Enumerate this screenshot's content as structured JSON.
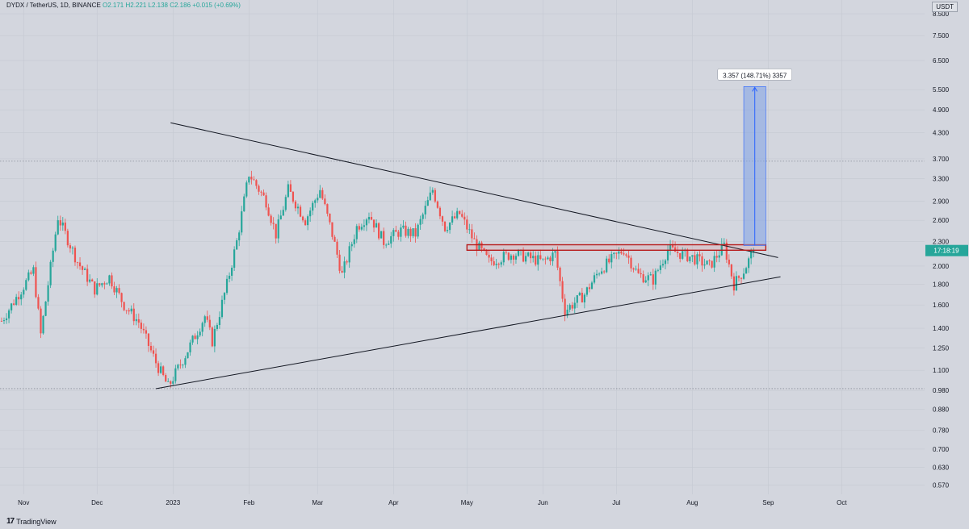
{
  "header": {
    "symbol": "DYDX / TetherUS, 1D, BINANCE",
    "open": "O2.171",
    "high": "H2.221",
    "low": "L2.138",
    "close": "C2.186",
    "change": "+0.015 (+0.69%)"
  },
  "unit_label": "USDT",
  "price_tag": "17:18:19",
  "measure_label": "3.357 (148.71%) 3357",
  "brand": {
    "logo": "17",
    "name": "TradingView"
  },
  "colors": {
    "background": "#d3d6de",
    "up": "#26a69a",
    "down": "#ef5350",
    "price_tag": "#26a69a",
    "resistance": "#b71c1c",
    "measure_fill": "#7fa3e6",
    "measure_line": "#2962ff",
    "trendline": "#131722"
  },
  "chart_data": {
    "type": "candlestick",
    "log_scale": true,
    "y_ticks": [
      "8.500",
      "7.500",
      "6.500",
      "5.500",
      "4.900",
      "4.300",
      "3.700",
      "3.300",
      "2.900",
      "2.600",
      "2.300",
      "2.000",
      "1.800",
      "1.600",
      "1.400",
      "1.250",
      "1.100",
      "0.980",
      "0.880",
      "0.780",
      "0.700",
      "0.630",
      "0.570"
    ],
    "x_ticks": [
      "Nov",
      "Dec",
      "2023",
      "Feb",
      "Mar",
      "Apr",
      "May",
      "Jun",
      "Jul",
      "Aug",
      "Sep",
      "Oct"
    ],
    "ylim": [
      0.54,
      9.2
    ],
    "series_description": "DYDX/USDT daily candles, late Oct 2022 to Aug 2023",
    "anchors": [
      {
        "date": "2022-10-23",
        "close": 1.46
      },
      {
        "date": "2022-11-05",
        "close": 1.95
      },
      {
        "date": "2022-11-08",
        "close": 1.35
      },
      {
        "date": "2022-11-15",
        "close": 2.65
      },
      {
        "date": "2022-11-23",
        "close": 2.05
      },
      {
        "date": "2022-11-30",
        "close": 1.75
      },
      {
        "date": "2022-12-06",
        "close": 1.88
      },
      {
        "date": "2022-12-12",
        "close": 1.6
      },
      {
        "date": "2022-12-18",
        "close": 1.45
      },
      {
        "date": "2022-12-25",
        "close": 1.15
      },
      {
        "date": "2022-12-30",
        "close": 1.0
      },
      {
        "date": "2023-01-06",
        "close": 1.2
      },
      {
        "date": "2023-01-14",
        "close": 1.5
      },
      {
        "date": "2023-01-17",
        "close": 1.3
      },
      {
        "date": "2023-01-23",
        "close": 1.8
      },
      {
        "date": "2023-01-27",
        "close": 2.3
      },
      {
        "date": "2023-02-01",
        "close": 3.4
      },
      {
        "date": "2023-02-08",
        "close": 2.9
      },
      {
        "date": "2023-02-12",
        "close": 2.4
      },
      {
        "date": "2023-02-17",
        "close": 3.1
      },
      {
        "date": "2023-02-24",
        "close": 2.6
      },
      {
        "date": "2023-03-02",
        "close": 3.1
      },
      {
        "date": "2023-03-07",
        "close": 2.4
      },
      {
        "date": "2023-03-11",
        "close": 1.9
      },
      {
        "date": "2023-03-17",
        "close": 2.5
      },
      {
        "date": "2023-03-22",
        "close": 2.7
      },
      {
        "date": "2023-03-28",
        "close": 2.3
      },
      {
        "date": "2023-04-04",
        "close": 2.45
      },
      {
        "date": "2023-04-10",
        "close": 2.4
      },
      {
        "date": "2023-04-17",
        "close": 3.1
      },
      {
        "date": "2023-04-22",
        "close": 2.5
      },
      {
        "date": "2023-04-28",
        "close": 2.7
      },
      {
        "date": "2023-05-04",
        "close": 2.3
      },
      {
        "date": "2023-05-10",
        "close": 2.05
      },
      {
        "date": "2023-05-20",
        "close": 2.15
      },
      {
        "date": "2023-06-01",
        "close": 2.05
      },
      {
        "date": "2023-06-06",
        "close": 2.15
      },
      {
        "date": "2023-06-10",
        "close": 1.55
      },
      {
        "date": "2023-06-18",
        "close": 1.7
      },
      {
        "date": "2023-06-24",
        "close": 1.95
      },
      {
        "date": "2023-07-04",
        "close": 2.2
      },
      {
        "date": "2023-07-10",
        "close": 1.9
      },
      {
        "date": "2023-07-16",
        "close": 1.85
      },
      {
        "date": "2023-07-22",
        "close": 2.2
      },
      {
        "date": "2023-08-01",
        "close": 2.1
      },
      {
        "date": "2023-08-08",
        "close": 2.0
      },
      {
        "date": "2023-08-14",
        "close": 2.25
      },
      {
        "date": "2023-08-18",
        "close": 1.8
      },
      {
        "date": "2023-08-22",
        "close": 1.95
      },
      {
        "date": "2023-08-26",
        "close": 2.186
      }
    ],
    "annotations": [
      {
        "type": "trendline",
        "name": "upper-descending-trendline",
        "from": {
          "date": "2022-12-31",
          "price": 4.55
        },
        "to": {
          "date": "2023-09-05",
          "price": 2.1
        }
      },
      {
        "type": "trendline",
        "name": "lower-ascending-trendline",
        "from": {
          "date": "2022-12-25",
          "price": 0.99
        },
        "to": {
          "date": "2023-09-06",
          "price": 1.88
        }
      },
      {
        "type": "zone",
        "name": "resistance-zone",
        "from_date": "2023-05-01",
        "to_date": "2023-08-31",
        "top": 2.26,
        "bottom": 2.19
      },
      {
        "type": "measure",
        "name": "price-range-measurement",
        "from_date": "2023-08-22",
        "to_date": "2023-08-31",
        "from_price": 2.25,
        "to_price": 5.6,
        "label": "3.357 (148.71%) 3357"
      },
      {
        "type": "hline",
        "name": "dotted-high-line",
        "price": 3.65
      },
      {
        "type": "hline",
        "name": "dotted-low-line",
        "price": 0.99
      }
    ]
  }
}
